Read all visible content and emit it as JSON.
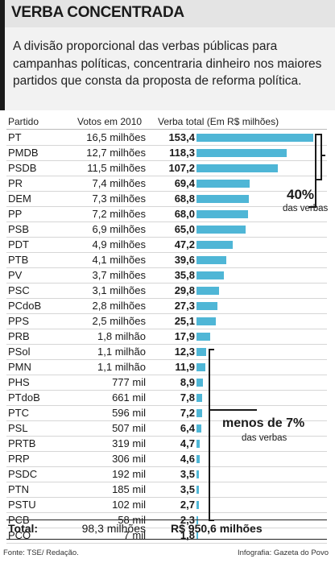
{
  "title": "VERBA CONCENTRADA",
  "intro": "A divisão proporcional das verbas públicas para campanhas políticas, concentraria dinheiro nos maiores partidos que consta da proposta de reforma política.",
  "columns": {
    "party": "Partido",
    "votes": "Votos em 2010",
    "budget": "Verba total (Em R$ milhões)"
  },
  "total": {
    "label": "Total:",
    "votes": "98,3 milhões",
    "budget": "R$ 950,6 milhões"
  },
  "annotations": {
    "top_pct": "40%",
    "top_note": "das verbas",
    "bottom_pct": "menos de 7%",
    "bottom_note": "das verbas"
  },
  "footer": {
    "source": "Fonte: TSE/ Redação.",
    "credit": "Infografia: Gazeta do Povo"
  },
  "colors": {
    "bar": "#4fb6d6",
    "header_bg": "#e4e4e4",
    "intro_bg": "#f2f2f2"
  },
  "chart_data": {
    "type": "bar",
    "orientation": "horizontal",
    "categories": [
      "PT",
      "PMDB",
      "PSDB",
      "PR",
      "DEM",
      "PP",
      "PSB",
      "PDT",
      "PTB",
      "PV",
      "PSC",
      "PCdoB",
      "PPS",
      "PRB",
      "PSol",
      "PMN",
      "PHS",
      "PTdoB",
      "PTC",
      "PSL",
      "PRTB",
      "PRP",
      "PSDC",
      "PTN",
      "PSTU",
      "PCB",
      "PCO"
    ],
    "votes_labels": [
      "16,5 milhões",
      "12,7 milhões",
      "11,5 milhões",
      "7,4 milhões",
      "7,3 milhões",
      "7,2 milhões",
      "6,9 milhões",
      "4,9 milhões",
      "4,1 milhões",
      "3,7 milhões",
      "3,1 milhões",
      "2,8 milhões",
      "2,5 milhões",
      "1,8 milhão",
      "1,1 milhão",
      "1,1 milhão",
      "777 mil",
      "661 mil",
      "596 mil",
      "507 mil",
      "319 mil",
      "306 mil",
      "192 mil",
      "185 mil",
      "102 mil",
      "58 mil",
      "7 mil"
    ],
    "value_labels": [
      "153,4",
      "118,3",
      "107,2",
      "69,4",
      "68,8",
      "68,0",
      "65,0",
      "47,2",
      "39,6",
      "35,8",
      "29,8",
      "27,3",
      "25,1",
      "17,9",
      "12,3",
      "11,9",
      "8,9",
      "7,8",
      "7,2",
      "6,4",
      "4,7",
      "4,6",
      "3,5",
      "3,5",
      "2,7",
      "2,3",
      "1,8"
    ],
    "values": [
      153.4,
      118.3,
      107.2,
      69.4,
      68.8,
      68.0,
      65.0,
      47.2,
      39.6,
      35.8,
      29.8,
      27.3,
      25.1,
      17.9,
      12.3,
      11.9,
      8.9,
      7.8,
      7.2,
      6.4,
      4.7,
      4.6,
      3.5,
      3.5,
      2.7,
      2.3,
      1.8
    ],
    "xlim": [
      0,
      153.4
    ]
  }
}
